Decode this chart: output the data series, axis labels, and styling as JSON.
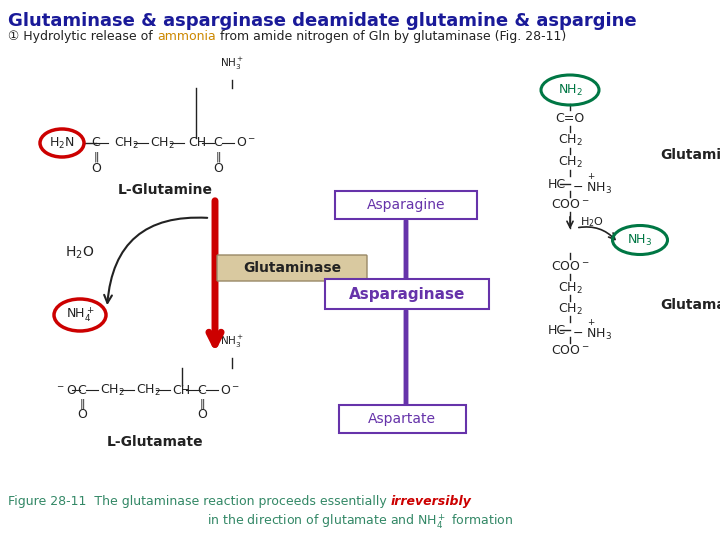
{
  "title": "Glutaminase & asparginase deamidate glutamine & aspargine",
  "title_color": "#1a1a99",
  "title_fontsize": 13,
  "sub_prefix": "① Hydrolytic release of ",
  "sub_ammonia": "ammonia",
  "sub_suffix": " from amide nitrogen of Gln by glutaminase (Fig. 28-11)",
  "ammonia_color": "#cc8800",
  "subtitle_fontsize": 9,
  "bg_color": "#ffffff",
  "purple": "#6633aa",
  "red": "#cc0000",
  "green": "#007744",
  "black": "#222222",
  "tan": "#d9c9a0",
  "caption_green": "#338866",
  "caption_red": "#cc0000",
  "caption_fontsize": 9
}
